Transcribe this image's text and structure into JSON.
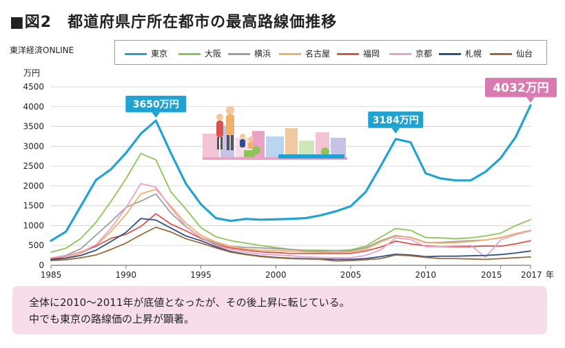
{
  "title": "■図2　都道府県庁所在都市の最高路線価推移",
  "source": "東洋経済ONLINE",
  "footnote": {
    "line1": "全体に2010～2011年が底値となったが、その後上昇に転じている。",
    "line2": "中でも東京の路線価の上昇が顕著。"
  },
  "chart_data": {
    "type": "line",
    "title": "都道府県庁所在都市の最高路線価推移",
    "ylabel": "万円",
    "xlabel": "年",
    "ylim": [
      0,
      4500
    ],
    "xlim": [
      1985,
      2017
    ],
    "yticks": [
      0,
      500,
      1000,
      1500,
      2000,
      2500,
      3000,
      3500,
      4000,
      4500
    ],
    "xticks": [
      1985,
      1990,
      1995,
      2000,
      2005,
      2010,
      2015,
      2017
    ],
    "xtick_labels": [
      "1985",
      "1990",
      "1995",
      "2000",
      "2005",
      "2010",
      "2015",
      "2017"
    ],
    "x_unit": "年",
    "x": [
      1985,
      1986,
      1987,
      1988,
      1989,
      1990,
      1991,
      1992,
      1993,
      1994,
      1995,
      1996,
      1997,
      1998,
      1999,
      2000,
      2001,
      2002,
      2003,
      2004,
      2005,
      2006,
      2007,
      2008,
      2009,
      2010,
      2011,
      2012,
      2013,
      2014,
      2015,
      2016,
      2017
    ],
    "grid": true,
    "legend_position": "top",
    "series": [
      {
        "name": "東京",
        "color": "#1fa3d2",
        "width": 3.2,
        "values": [
          620,
          850,
          1500,
          2150,
          2420,
          2830,
          3320,
          3650,
          2830,
          2060,
          1540,
          1190,
          1120,
          1170,
          1150,
          1160,
          1170,
          1190,
          1260,
          1360,
          1490,
          1850,
          2500,
          3184,
          3100,
          2320,
          2190,
          2140,
          2140,
          2360,
          2700,
          3230,
          4032
        ]
      },
      {
        "name": "大阪",
        "color": "#8cc556",
        "width": 1.8,
        "values": [
          330,
          430,
          680,
          1080,
          1610,
          2180,
          2820,
          2660,
          1850,
          1420,
          950,
          720,
          620,
          560,
          500,
          450,
          400,
          380,
          380,
          370,
          390,
          480,
          710,
          930,
          880,
          700,
          690,
          670,
          690,
          740,
          810,
          1000,
          1150
        ]
      },
      {
        "name": "横浜",
        "color": "#9e9e9e",
        "width": 1.8,
        "values": [
          180,
          250,
          420,
          760,
          1100,
          1460,
          1620,
          1800,
          1320,
          970,
          700,
          560,
          480,
          450,
          440,
          420,
          400,
          370,
          360,
          370,
          370,
          440,
          620,
          750,
          700,
          570,
          580,
          600,
          620,
          640,
          690,
          800,
          880
        ]
      },
      {
        "name": "名古屋",
        "color": "#f2b16b",
        "width": 1.8,
        "values": [
          140,
          190,
          300,
          500,
          850,
          1280,
          1800,
          1920,
          1490,
          1060,
          760,
          590,
          480,
          410,
          380,
          370,
          360,
          340,
          330,
          330,
          340,
          400,
          590,
          730,
          710,
          580,
          560,
          570,
          600,
          640,
          700,
          800,
          870
        ]
      },
      {
        "name": "福岡",
        "color": "#d9544f",
        "width": 1.8,
        "values": [
          160,
          230,
          340,
          480,
          680,
          780,
          980,
          1300,
          1040,
          870,
          680,
          520,
          440,
          380,
          340,
          320,
          300,
          300,
          300,
          300,
          300,
          360,
          460,
          610,
          540,
          490,
          470,
          470,
          470,
          490,
          480,
          540,
          620
        ]
      },
      {
        "name": "京都",
        "color": "#e9a3c7",
        "width": 1.8,
        "values": [
          190,
          240,
          330,
          520,
          930,
          1450,
          2060,
          1970,
          1450,
          980,
          700,
          500,
          400,
          330,
          280,
          260,
          240,
          210,
          200,
          190,
          190,
          250,
          390,
          690,
          650,
          470,
          470,
          490,
          500,
          200,
          640,
          770,
          870
        ]
      },
      {
        "name": "札幌",
        "color": "#2b4f8a",
        "width": 1.8,
        "values": [
          140,
          180,
          250,
          380,
          600,
          830,
          1180,
          1140,
          940,
          740,
          620,
          470,
          350,
          280,
          230,
          200,
          180,
          170,
          160,
          150,
          150,
          170,
          220,
          280,
          260,
          220,
          230,
          230,
          240,
          250,
          270,
          310,
          360
        ]
      },
      {
        "name": "仙台",
        "color": "#9a6a3a",
        "width": 1.8,
        "values": [
          120,
          140,
          190,
          260,
          400,
          560,
          770,
          960,
          840,
          670,
          560,
          440,
          330,
          270,
          220,
          190,
          170,
          160,
          150,
          110,
          120,
          140,
          170,
          260,
          240,
          200,
          170,
          170,
          160,
          150,
          170,
          190,
          210
        ]
      }
    ],
    "annotations": [
      {
        "label": "3650万円",
        "x": 1992,
        "y": 3650
      },
      {
        "label": "3184万円",
        "x": 2008,
        "y": 3184
      },
      {
        "label": "4032万円",
        "x": 2017,
        "y": 4032
      }
    ]
  }
}
